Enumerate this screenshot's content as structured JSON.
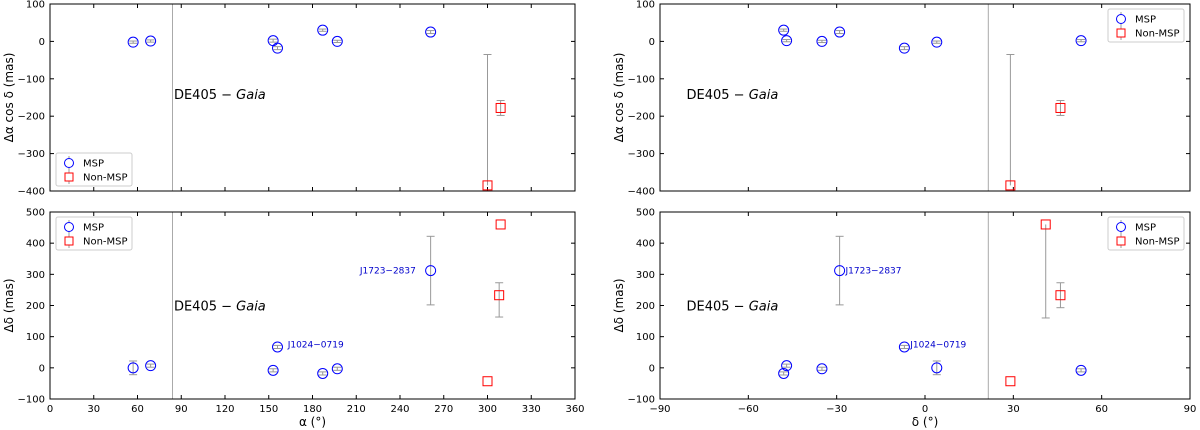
{
  "chart_data": [
    {
      "type": "scatter",
      "panel": "top-left",
      "xlim": [
        0,
        360
      ],
      "ylim": [
        -400,
        100
      ],
      "xticks": [
        0,
        30,
        60,
        90,
        120,
        150,
        180,
        210,
        240,
        270,
        300,
        330,
        360
      ],
      "xtick_labels_visible": false,
      "yticks": [
        -400,
        -300,
        -200,
        -100,
        0,
        100
      ],
      "ylabel": "Δα cos δ (mas)",
      "xlabel": "",
      "vline": 84,
      "legend": "lower-left",
      "annotation": {
        "text": "DE405 − ",
        "italic": "Gaia",
        "x": 85,
        "y": -140
      },
      "series": [
        {
          "name": "MSP",
          "marker": "circle",
          "color": "#0000ff",
          "x": [
            57,
            69,
            153,
            156,
            187,
            197,
            261
          ],
          "y": [
            -2,
            1,
            2,
            -18,
            30,
            0,
            25
          ],
          "yerr": [
            3,
            3,
            4,
            4,
            3,
            3,
            4
          ]
        },
        {
          "name": "Non-MSP",
          "marker": "square",
          "color": "#ff0000",
          "x": [
            300,
            309
          ],
          "y": [
            -385,
            -178
          ],
          "yerr_low": [
            0,
            20
          ],
          "yerr_high": [
            350,
            20
          ]
        }
      ],
      "labels": []
    },
    {
      "type": "scatter",
      "panel": "top-right",
      "xlim": [
        -90,
        90
      ],
      "ylim": [
        -400,
        100
      ],
      "xticks": [
        -90,
        -60,
        -30,
        0,
        30,
        60,
        90
      ],
      "xtick_labels_visible": false,
      "yticks": [
        -400,
        -300,
        -200,
        -100,
        0,
        100
      ],
      "ylabel": "Δα cos δ (mas)",
      "xlabel": "",
      "vline": 21.5,
      "legend": "upper-right",
      "annotation": {
        "text": "DE405 − ",
        "italic": "Gaia",
        "x": -81,
        "y": -140
      },
      "series": [
        {
          "name": "MSP",
          "marker": "circle",
          "color": "#0000ff",
          "x": [
            -48,
            -47,
            -35,
            -29,
            -7,
            4,
            53
          ],
          "y": [
            30,
            2,
            0,
            25,
            -18,
            -2,
            2
          ],
          "yerr": [
            3,
            3,
            3,
            4,
            4,
            3,
            3
          ]
        },
        {
          "name": "Non-MSP",
          "marker": "square",
          "color": "#ff0000",
          "x": [
            29,
            46
          ],
          "y": [
            -385,
            -178
          ],
          "yerr_low": [
            0,
            20
          ],
          "yerr_high": [
            350,
            20
          ]
        }
      ],
      "labels": []
    },
    {
      "type": "scatter",
      "panel": "bottom-left",
      "xlim": [
        0,
        360
      ],
      "ylim": [
        -100,
        500
      ],
      "xticks": [
        0,
        30,
        60,
        90,
        120,
        150,
        180,
        210,
        240,
        270,
        300,
        330,
        360
      ],
      "xtick_labels_visible": true,
      "yticks": [
        -100,
        0,
        100,
        200,
        300,
        400,
        500
      ],
      "ylabel": "Δδ (mas)",
      "xlabel": "α (°)",
      "vline": 84,
      "legend": "upper-left",
      "annotation": {
        "text": "DE405 − ",
        "italic": "Gaia",
        "x": 85,
        "y": 200
      },
      "series": [
        {
          "name": "MSP",
          "marker": "circle",
          "color": "#0000ff",
          "x": [
            57,
            69,
            153,
            156,
            187,
            197,
            261
          ],
          "y": [
            0,
            7,
            -8,
            67,
            -18,
            -3,
            312
          ],
          "yerr_low": [
            22,
            5,
            5,
            5,
            5,
            5,
            110
          ],
          "yerr_high": [
            22,
            5,
            5,
            5,
            5,
            5,
            110
          ]
        },
        {
          "name": "Non-MSP",
          "marker": "square",
          "color": "#ff0000",
          "x": [
            300,
            308,
            309
          ],
          "y": [
            -43,
            233,
            460
          ],
          "yerr_low": [
            0,
            70,
            0
          ],
          "yerr_high": [
            0,
            40,
            0
          ]
        }
      ],
      "labels": [
        {
          "text": "J1024−0719",
          "x": 163,
          "y": 75,
          "anchor": "start"
        },
        {
          "text": "J1723−2837",
          "x": 255,
          "y": 312,
          "anchor": "end"
        }
      ]
    },
    {
      "type": "scatter",
      "panel": "bottom-right",
      "xlim": [
        -90,
        90
      ],
      "ylim": [
        -100,
        500
      ],
      "xticks": [
        -90,
        -60,
        -30,
        0,
        30,
        60,
        90
      ],
      "xtick_labels_visible": true,
      "yticks": [
        -100,
        0,
        100,
        200,
        300,
        400,
        500
      ],
      "ylabel": "Δδ (mas)",
      "xlabel": "δ (°)",
      "vline": 21.5,
      "legend": "upper-right",
      "annotation": {
        "text": "DE405 − ",
        "italic": "Gaia",
        "x": -81,
        "y": 200
      },
      "series": [
        {
          "name": "MSP",
          "marker": "circle",
          "color": "#0000ff",
          "x": [
            -48,
            -47,
            -35,
            -29,
            -7,
            4,
            53
          ],
          "y": [
            -18,
            7,
            -3,
            312,
            67,
            0,
            -8
          ],
          "yerr_low": [
            5,
            5,
            5,
            110,
            5,
            22,
            5
          ],
          "yerr_high": [
            5,
            5,
            5,
            110,
            5,
            22,
            5
          ]
        },
        {
          "name": "Non-MSP",
          "marker": "square",
          "color": "#ff0000",
          "x": [
            29,
            41,
            46
          ],
          "y": [
            -43,
            460,
            233
          ],
          "yerr_low": [
            0,
            300,
            40
          ],
          "yerr_high": [
            0,
            0,
            40
          ]
        }
      ],
      "labels": [
        {
          "text": "J1024−0719",
          "x": -5,
          "y": 75,
          "anchor": "start"
        },
        {
          "text": "J1723−2837",
          "x": -27,
          "y": 312,
          "anchor": "start"
        }
      ]
    }
  ]
}
